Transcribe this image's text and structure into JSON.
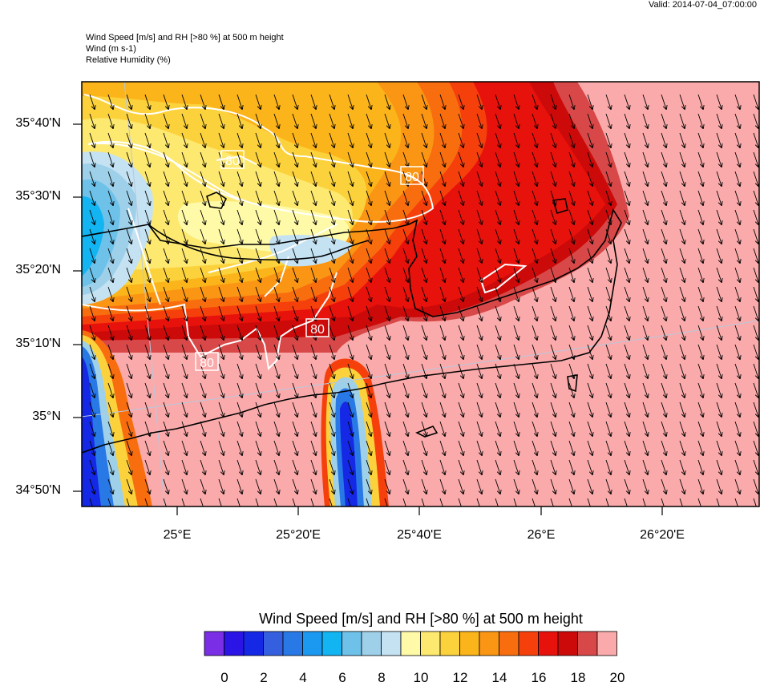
{
  "header": {
    "valid_time": "Valid: 2014-07-04_07:00:00",
    "line1": "Wind Speed [m/s] and RH [>80 %] at 500 m height",
    "line2": "Wind   (m s-1)",
    "line3": "Relative Humidity   (%)"
  },
  "map": {
    "lat_labels": [
      "35°40'N",
      "35°30'N",
      "35°20'N",
      "35°10'N",
      "35°N",
      "34°50'N"
    ],
    "lon_labels": [
      "25°E",
      "25°20'E",
      "25°40'E",
      "26°E",
      "26°20'E"
    ],
    "rh_contour_label": "80",
    "colors": {
      "coast": "#000000",
      "rh_contour": "#ffffff",
      "grid": "#b8c8dd",
      "arrow": "#000000"
    }
  },
  "colorbar": {
    "title": "Wind Speed [m/s] and RH [>80 %] at 500 m height",
    "ticks": [
      "0",
      "2",
      "4",
      "6",
      "8",
      "10",
      "12",
      "14",
      "16",
      "18",
      "20"
    ],
    "colors": [
      "#7a2ee6",
      "#2a14e6",
      "#1428e6",
      "#3460e0",
      "#2878e6",
      "#1b98f0",
      "#12b4f2",
      "#6ec2ea",
      "#9ed0ea",
      "#c4e2f2",
      "#fffaa8",
      "#fde870",
      "#fcd23c",
      "#fbb419",
      "#fa9614",
      "#f86e0f",
      "#f6400c",
      "#e8120c",
      "#cc0a0a",
      "#d84848",
      "#faaaaa"
    ]
  }
}
